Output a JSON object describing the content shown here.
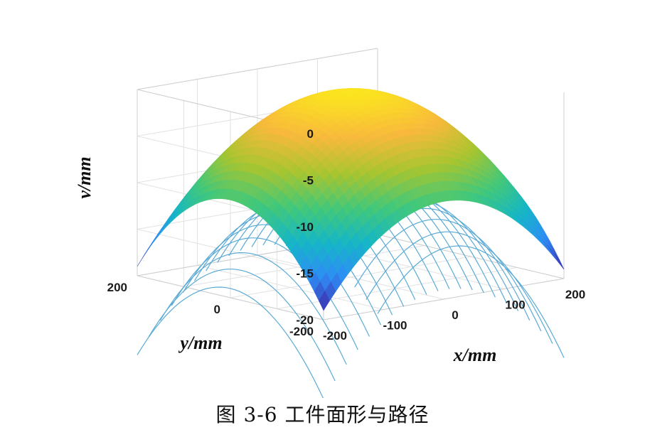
{
  "caption": "图 3-6  工件面形与路径",
  "chart_data": {
    "type": "surface3d",
    "xlabel": "x/mm",
    "ylabel": "y/mm",
    "zlabel": "v/mm",
    "xlim": [
      -200,
      200
    ],
    "ylim": [
      -200,
      200
    ],
    "zlim": [
      -20,
      0
    ],
    "x_ticks": [
      "-200",
      "-100",
      "0",
      "100",
      "200"
    ],
    "y_ticks": [
      "-200",
      "0",
      "200"
    ],
    "z_ticks": [
      "0",
      "-5",
      "-10",
      "-15",
      "-20"
    ],
    "surface": {
      "name": "workpiece surface",
      "z_center": 0,
      "z_edge_mid": -9.5,
      "z_corner": -19,
      "colormap": [
        "#3e26a8",
        "#2f8cf6",
        "#15b6c7",
        "#42c87a",
        "#a7c530",
        "#f8b93c",
        "#fbe51f"
      ]
    },
    "path": {
      "name": "tool path",
      "z_offset": -9.5,
      "line_count": 22,
      "color": "#5aaad6"
    }
  }
}
